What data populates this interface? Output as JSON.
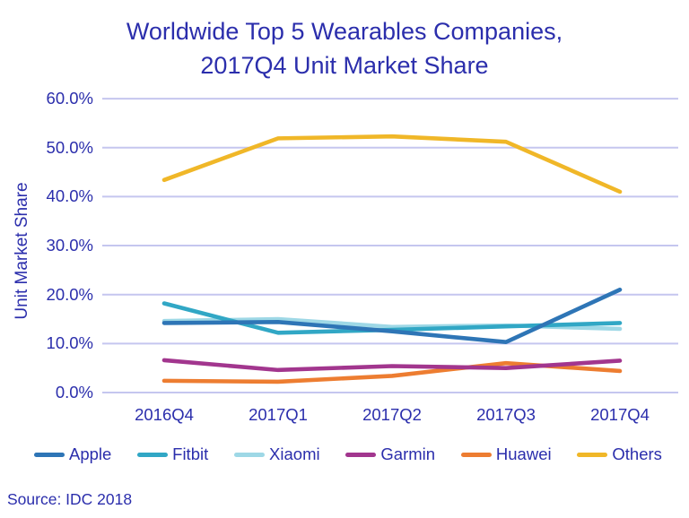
{
  "title": {
    "line1": "Worldwide Top 5 Wearables Companies,",
    "line2": "2017Q4 Unit Market Share"
  },
  "source": "Source: IDC 2018",
  "colors": {
    "text_navy": "#2b2eac",
    "gridline": "#c5c6ef",
    "background": "#ffffff",
    "apple": "#2e75b6",
    "fitbit": "#31a7c5",
    "xiaomi": "#9ed8e6",
    "garmin": "#a2368e",
    "huawei": "#ed7d31",
    "others": "#f0b728"
  },
  "chart_data": {
    "type": "line",
    "title": "Worldwide Top 5 Wearables Companies, 2017Q4 Unit Market Share",
    "categories": [
      "2016Q4",
      "2017Q1",
      "2017Q2",
      "2017Q3",
      "2017Q4"
    ],
    "series": [
      {
        "name": "Apple",
        "color": "#2e75b6",
        "values": [
          14.2,
          14.4,
          12.5,
          10.3,
          21.0
        ]
      },
      {
        "name": "Fitbit",
        "color": "#31a7c5",
        "values": [
          18.2,
          12.2,
          12.8,
          13.5,
          14.2
        ]
      },
      {
        "name": "Xiaomi",
        "color": "#9ed8e6",
        "values": [
          14.6,
          15.0,
          13.4,
          13.7,
          13.0
        ]
      },
      {
        "name": "Garmin",
        "color": "#a2368e",
        "values": [
          6.6,
          4.6,
          5.4,
          5.0,
          6.5
        ]
      },
      {
        "name": "Huawei",
        "color": "#ed7d31",
        "values": [
          2.4,
          2.2,
          3.4,
          6.0,
          4.4
        ]
      },
      {
        "name": "Others",
        "color": "#f0b728",
        "values": [
          43.4,
          51.9,
          52.3,
          51.2,
          41.0
        ]
      }
    ],
    "xlabel": "",
    "ylabel": "Unit Market Share",
    "ylim": [
      0,
      60
    ],
    "ytick_step": 10,
    "yticks": [
      "60.0%",
      "50.0%",
      "40.0%",
      "30.0%",
      "20.0%",
      "10.0%",
      "0.0%"
    ],
    "grid": true,
    "legend_position": "bottom"
  }
}
